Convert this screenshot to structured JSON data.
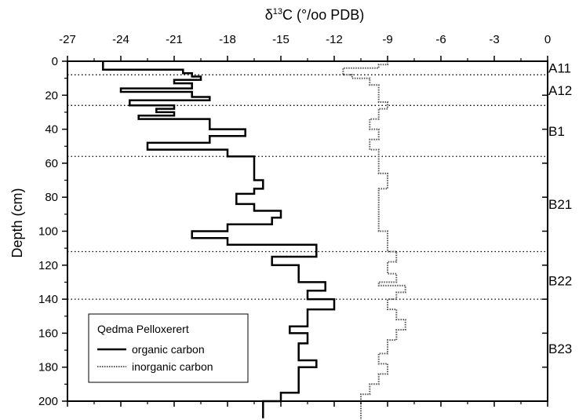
{
  "chart_data": {
    "type": "line",
    "title": "",
    "xlabel": {
      "symbol": "δ",
      "superscript": "13",
      "text": "C (°/oo PDB)"
    },
    "ylabel": "Depth (cm)",
    "xlim": [
      -27,
      0
    ],
    "ylim": [
      200,
      0
    ],
    "x_axis_position": "top",
    "y_inverted": true,
    "grid": false,
    "x_ticks": [
      -27,
      -24,
      -21,
      -18,
      -15,
      -12,
      -9,
      -6,
      -3,
      0
    ],
    "y_ticks": [
      0,
      20,
      40,
      60,
      80,
      100,
      120,
      140,
      160,
      180,
      200
    ],
    "horizons": [
      {
        "label": "A11",
        "label_depth": 4
      },
      {
        "label": "A12",
        "label_depth": 17
      },
      {
        "label": "B1",
        "label_depth": 41
      },
      {
        "label": "B21",
        "label_depth": 84
      },
      {
        "label": "B22",
        "label_depth": 129
      },
      {
        "label": "B23",
        "label_depth": 169
      }
    ],
    "boundaries": [
      8,
      26,
      56,
      112,
      140
    ],
    "legend": {
      "title": "Qedma Pelloxerert",
      "placement": "bottom-left",
      "entries": [
        "organic carbon",
        "inorganic carbon"
      ]
    },
    "series": [
      {
        "name": "organic carbon",
        "style": "solid",
        "color": "#000000",
        "points": [
          [
            -25.0,
            0
          ],
          [
            -25.0,
            5
          ],
          [
            -20.5,
            5
          ],
          [
            -20.5,
            7
          ],
          [
            -20.0,
            7
          ],
          [
            -20.0,
            9
          ],
          [
            -19.5,
            9
          ],
          [
            -19.5,
            11
          ],
          [
            -21.0,
            11
          ],
          [
            -21.0,
            13
          ],
          [
            -20.0,
            13
          ],
          [
            -20.0,
            16
          ],
          [
            -24.0,
            16
          ],
          [
            -24.0,
            18
          ],
          [
            -20.0,
            18
          ],
          [
            -20.0,
            21
          ],
          [
            -19.0,
            21
          ],
          [
            -19.0,
            23
          ],
          [
            -23.5,
            23
          ],
          [
            -23.5,
            26
          ],
          [
            -21.0,
            26
          ],
          [
            -21.0,
            28
          ],
          [
            -22.0,
            28
          ],
          [
            -22.0,
            30
          ],
          [
            -21.0,
            30
          ],
          [
            -21.0,
            32
          ],
          [
            -23.0,
            32
          ],
          [
            -23.0,
            34
          ],
          [
            -19.0,
            34
          ],
          [
            -19.0,
            40
          ],
          [
            -17.0,
            40
          ],
          [
            -17.0,
            44
          ],
          [
            -19.0,
            44
          ],
          [
            -19.0,
            48
          ],
          [
            -22.5,
            48
          ],
          [
            -22.5,
            52
          ],
          [
            -18.0,
            52
          ],
          [
            -18.0,
            56
          ],
          [
            -16.5,
            56
          ],
          [
            -16.5,
            66
          ],
          [
            -16.5,
            66
          ],
          [
            -16.5,
            70
          ],
          [
            -16.0,
            70
          ],
          [
            -16.0,
            75
          ],
          [
            -16.5,
            75
          ],
          [
            -16.5,
            78
          ],
          [
            -17.5,
            78
          ],
          [
            -17.5,
            84
          ],
          [
            -16.5,
            84
          ],
          [
            -16.5,
            88
          ],
          [
            -15.0,
            88
          ],
          [
            -15.0,
            92
          ],
          [
            -15.5,
            92
          ],
          [
            -15.5,
            96
          ],
          [
            -18.0,
            96
          ],
          [
            -18.0,
            100
          ],
          [
            -20.0,
            100
          ],
          [
            -20.0,
            104
          ],
          [
            -18.0,
            104
          ],
          [
            -18.0,
            108
          ],
          [
            -13.0,
            108
          ],
          [
            -13.0,
            115
          ],
          [
            -15.5,
            115
          ],
          [
            -15.5,
            120
          ],
          [
            -14.0,
            120
          ],
          [
            -14.0,
            125
          ],
          [
            -14.0,
            125
          ],
          [
            -14.0,
            130
          ],
          [
            -12.5,
            130
          ],
          [
            -12.5,
            135
          ],
          [
            -13.5,
            135
          ],
          [
            -13.5,
            140
          ],
          [
            -12.0,
            140
          ],
          [
            -12.0,
            146
          ],
          [
            -13.5,
            146
          ],
          [
            -13.5,
            150
          ],
          [
            -13.5,
            150
          ],
          [
            -13.5,
            156
          ],
          [
            -14.5,
            156
          ],
          [
            -14.5,
            160
          ],
          [
            -13.5,
            160
          ],
          [
            -13.5,
            166
          ],
          [
            -14.0,
            166
          ],
          [
            -14.0,
            172
          ],
          [
            -14.0,
            172
          ],
          [
            -14.0,
            176
          ],
          [
            -13.0,
            176
          ],
          [
            -13.0,
            180
          ],
          [
            -14.0,
            180
          ],
          [
            -14.0,
            186
          ],
          [
            -14.0,
            186
          ],
          [
            -14.0,
            190
          ],
          [
            -14.0,
            190
          ],
          [
            -14.0,
            195
          ],
          [
            -15.0,
            195
          ],
          [
            -15.0,
            200
          ],
          [
            -16.0,
            200
          ],
          [
            -16.0,
            210
          ]
        ]
      },
      {
        "name": "inorganic carbon",
        "style": "dotted",
        "color": "#555555",
        "points": [
          [
            -9.0,
            0
          ],
          [
            -9.0,
            2
          ],
          [
            -9.5,
            2
          ],
          [
            -9.5,
            4
          ],
          [
            -11.5,
            4
          ],
          [
            -11.5,
            6
          ],
          [
            -11.5,
            6
          ],
          [
            -11.5,
            8
          ],
          [
            -11.0,
            8
          ],
          [
            -11.0,
            10
          ],
          [
            -10.0,
            10
          ],
          [
            -10.0,
            14
          ],
          [
            -9.5,
            14
          ],
          [
            -9.5,
            20
          ],
          [
            -9.5,
            20
          ],
          [
            -9.5,
            24
          ],
          [
            -9.0,
            24
          ],
          [
            -9.0,
            28
          ],
          [
            -9.5,
            28
          ],
          [
            -9.5,
            34
          ],
          [
            -10.0,
            34
          ],
          [
            -10.0,
            40
          ],
          [
            -9.5,
            40
          ],
          [
            -9.5,
            46
          ],
          [
            -10.0,
            46
          ],
          [
            -10.0,
            52
          ],
          [
            -9.5,
            52
          ],
          [
            -9.5,
            56
          ],
          [
            -9.5,
            56
          ],
          [
            -9.5,
            66
          ],
          [
            -9.0,
            66
          ],
          [
            -9.0,
            75
          ],
          [
            -9.5,
            75
          ],
          [
            -9.5,
            85
          ],
          [
            -9.5,
            85
          ],
          [
            -9.5,
            95
          ],
          [
            -9.5,
            95
          ],
          [
            -9.5,
            100
          ],
          [
            -9.0,
            100
          ],
          [
            -9.0,
            106
          ],
          [
            -9.0,
            106
          ],
          [
            -9.0,
            112
          ],
          [
            -8.5,
            112
          ],
          [
            -8.5,
            118
          ],
          [
            -9.0,
            118
          ],
          [
            -9.0,
            125
          ],
          [
            -8.5,
            125
          ],
          [
            -8.5,
            130
          ],
          [
            -9.5,
            130
          ],
          [
            -9.5,
            132
          ],
          [
            -8.0,
            132
          ],
          [
            -8.0,
            136
          ],
          [
            -8.5,
            136
          ],
          [
            -8.5,
            140
          ],
          [
            -9.0,
            140
          ],
          [
            -9.0,
            146
          ],
          [
            -8.5,
            146
          ],
          [
            -8.5,
            152
          ],
          [
            -8.0,
            152
          ],
          [
            -8.0,
            158
          ],
          [
            -8.5,
            158
          ],
          [
            -8.5,
            164
          ],
          [
            -9.0,
            164
          ],
          [
            -9.0,
            172
          ],
          [
            -9.5,
            172
          ],
          [
            -9.5,
            178
          ],
          [
            -9.0,
            178
          ],
          [
            -9.0,
            184
          ],
          [
            -9.5,
            184
          ],
          [
            -9.5,
            190
          ],
          [
            -10.0,
            190
          ],
          [
            -10.0,
            196
          ],
          [
            -10.5,
            196
          ],
          [
            -10.5,
            206
          ],
          [
            -10.5,
            206
          ],
          [
            -10.5,
            212
          ]
        ]
      }
    ]
  }
}
